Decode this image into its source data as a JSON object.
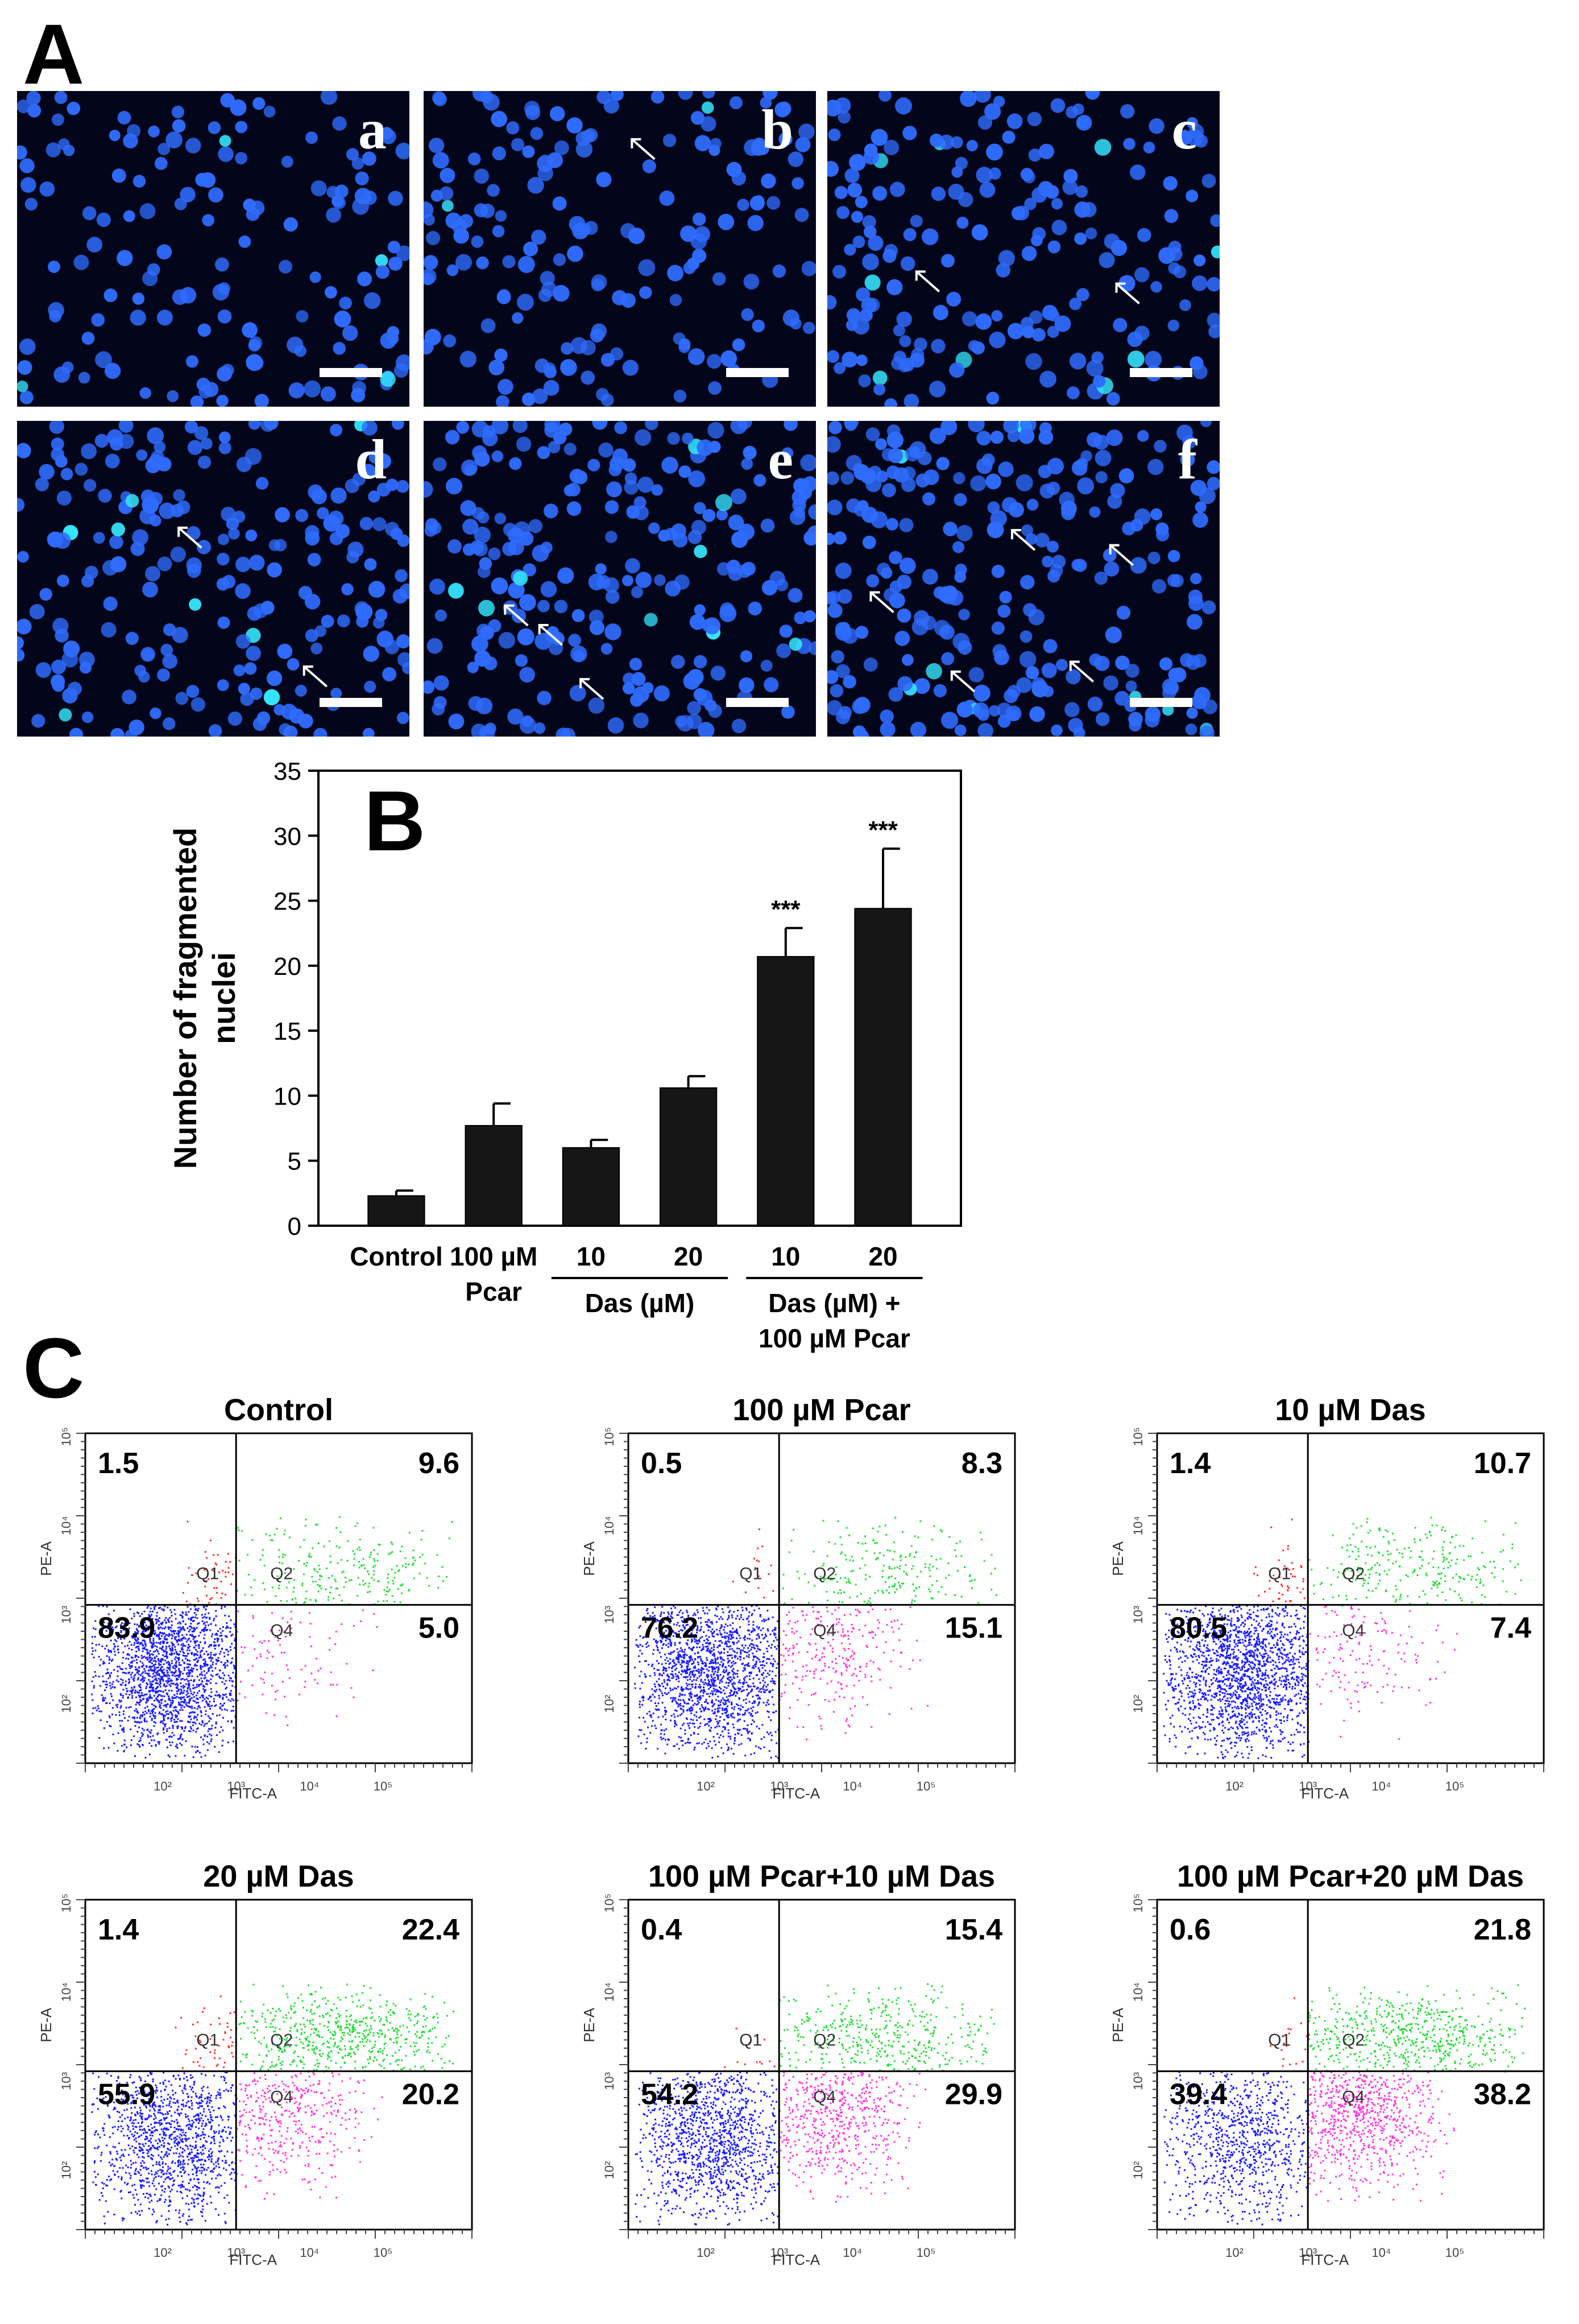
{
  "panels": {
    "a": "A",
    "b": "B",
    "c": "C"
  },
  "micrographs": [
    {
      "label": "a",
      "arrows": 0
    },
    {
      "label": "b",
      "arrows": 1
    },
    {
      "label": "c",
      "arrows": 2
    },
    {
      "label": "d",
      "arrows": 2
    },
    {
      "label": "e",
      "arrows": 3
    },
    {
      "label": "f",
      "arrows": 5
    }
  ],
  "chart_data": {
    "type": "bar",
    "panel_label": "B",
    "ylabel_lines": [
      "Number of fragmented",
      "nuclei"
    ],
    "ylim": [
      0,
      35
    ],
    "yticks": [
      0,
      5,
      10,
      15,
      20,
      25,
      30,
      35
    ],
    "categories": [
      {
        "lines": [
          "Control"
        ],
        "value": 2.3,
        "error": 0.4,
        "sig": ""
      },
      {
        "lines": [
          "100 µM",
          "Pcar"
        ],
        "value": 7.7,
        "error": 1.7,
        "sig": ""
      },
      {
        "lines": [
          "10"
        ],
        "value": 6.0,
        "error": 0.6,
        "sig": ""
      },
      {
        "lines": [
          "20"
        ],
        "value": 10.6,
        "error": 0.9,
        "sig": ""
      },
      {
        "lines": [
          "10"
        ],
        "value": 20.7,
        "error": 2.2,
        "sig": "***"
      },
      {
        "lines": [
          "20"
        ],
        "value": 24.4,
        "error": 4.6,
        "sig": "***"
      }
    ],
    "group_labels": [
      {
        "lines": [
          "Das (µM)"
        ],
        "from": 2,
        "to": 3
      },
      {
        "lines": [
          "Das (µM) +",
          "100 µM Pcar"
        ],
        "from": 4,
        "to": 5
      }
    ]
  },
  "flow_plots": [
    {
      "title": "Control",
      "q1": "1.5",
      "q2": "9.6",
      "q3": "83.9",
      "q4": "5.0"
    },
    {
      "title": "100 µM Pcar",
      "q1": "0.5",
      "q2": "8.3",
      "q3": "76.2",
      "q4": "15.1"
    },
    {
      "title": "10 µM Das",
      "q1": "1.4",
      "q2": "10.7",
      "q3": "80.5",
      "q4": "7.4"
    },
    {
      "title": "20 µM Das",
      "q1": "1.4",
      "q2": "22.4",
      "q3": "55.9",
      "q4": "20.2"
    },
    {
      "title": "100 µM Pcar+10 µM Das",
      "q1": "0.4",
      "q2": "15.4",
      "q3": "54.2",
      "q4": "29.9"
    },
    {
      "title": "100 µM Pcar+20 µM Das",
      "q1": "0.6",
      "q2": "21.8",
      "q3": "39.4",
      "q4": "38.2"
    }
  ],
  "flow_axes": {
    "xlabel": "FITC-A",
    "ylabel": "PE-A",
    "quadrant_names": [
      "Q1",
      "Q2",
      "Q4"
    ],
    "x_ticks": [
      "10²",
      "10³",
      "10⁴",
      "10⁵"
    ],
    "y_ticks": [
      "10²",
      "10³",
      "10⁴",
      "10⁵"
    ]
  },
  "colors": {
    "q1_dots": "#ff2a2a",
    "q2_dots": "#22dd33",
    "q3_dots": "#1a1aff",
    "q4_dots": "#ff33dd",
    "nuclei": "#2f6cff",
    "bar": "#161616"
  }
}
